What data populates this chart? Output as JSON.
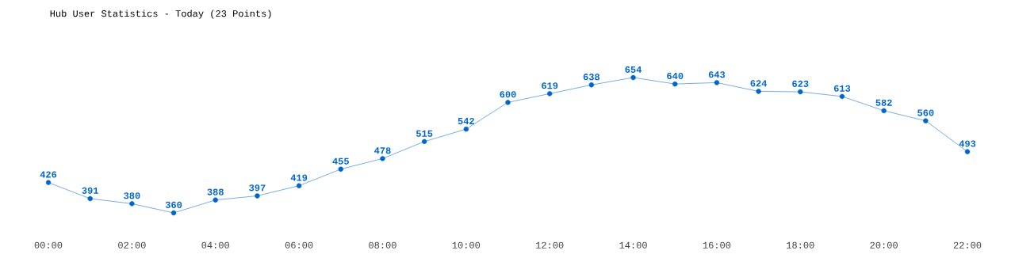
{
  "chart_data": {
    "type": "line",
    "title": "Hub User Statistics - Today (23 Points)",
    "x": [
      0,
      1,
      2,
      3,
      4,
      5,
      6,
      7,
      8,
      9,
      10,
      11,
      12,
      13,
      14,
      15,
      16,
      17,
      18,
      19,
      20,
      21,
      22
    ],
    "values": [
      426,
      391,
      380,
      360,
      388,
      397,
      419,
      455,
      478,
      515,
      542,
      600,
      619,
      638,
      654,
      640,
      643,
      624,
      623,
      613,
      582,
      560,
      493
    ],
    "color": "#0066cc",
    "xlim": [
      0,
      22
    ],
    "xticks": [
      {
        "value": 0,
        "label": "00:00"
      },
      {
        "value": 2,
        "label": "02:00"
      },
      {
        "value": 4,
        "label": "04:00"
      },
      {
        "value": 6,
        "label": "06:00"
      },
      {
        "value": 8,
        "label": "08:00"
      },
      {
        "value": 10,
        "label": "10:00"
      },
      {
        "value": 12,
        "label": "12:00"
      },
      {
        "value": 14,
        "label": "14:00"
      },
      {
        "value": 16,
        "label": "16:00"
      },
      {
        "value": 18,
        "label": "18:00"
      },
      {
        "value": 20,
        "label": "20:00"
      },
      {
        "value": 22,
        "label": "22:00"
      }
    ],
    "data_labels": true,
    "marker": "circle",
    "tick_labels": "x"
  }
}
